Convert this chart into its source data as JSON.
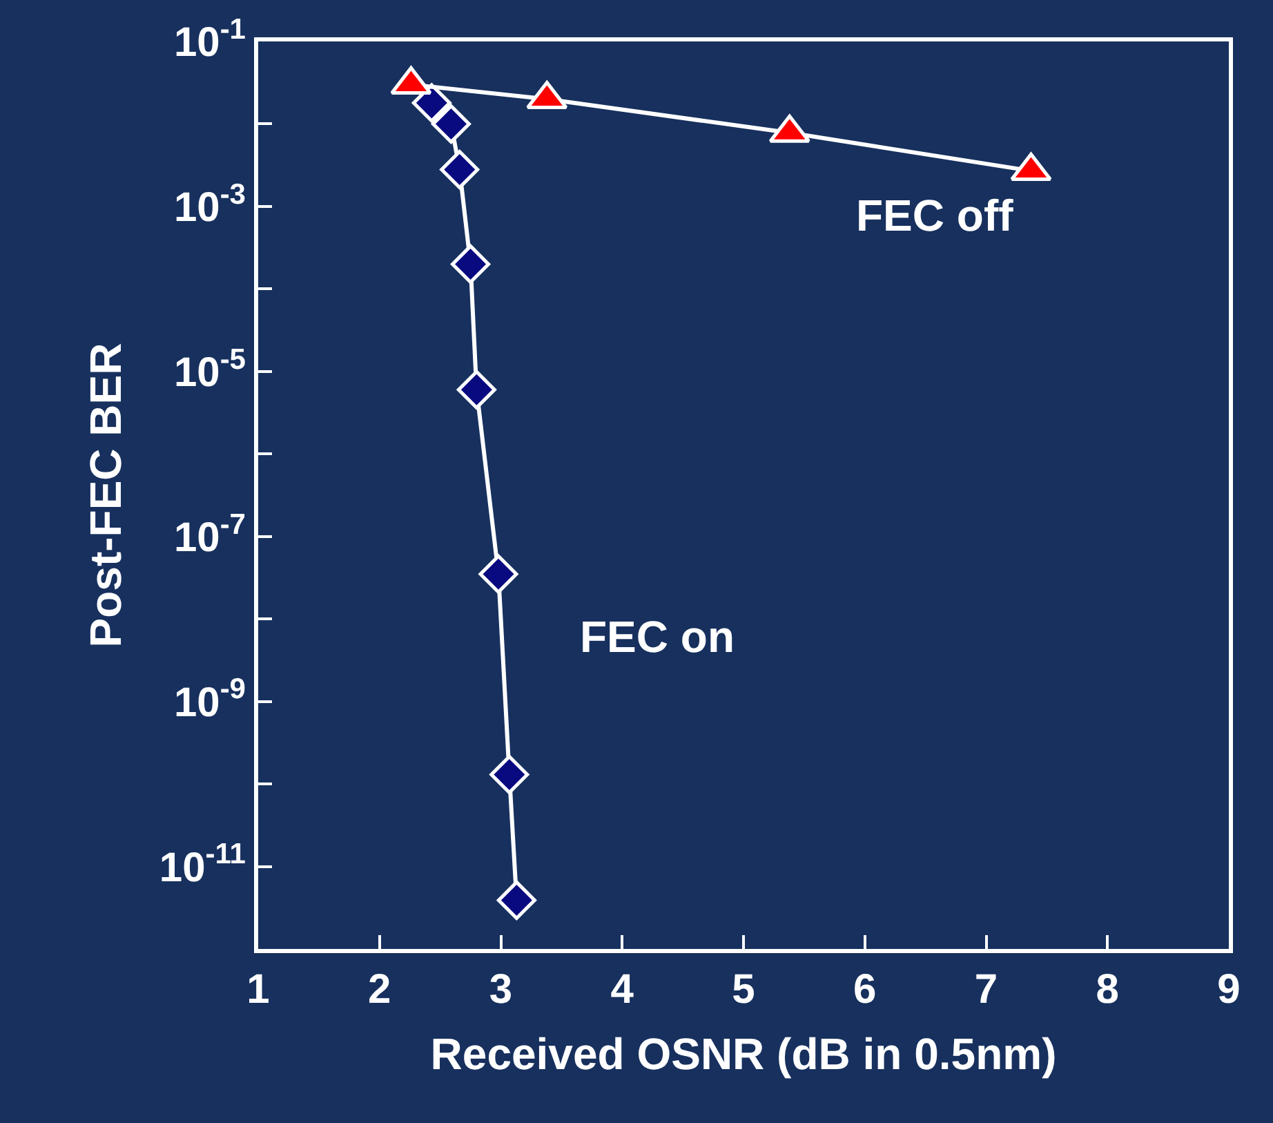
{
  "chart_data": {
    "type": "line",
    "xlabel": "Received OSNR (dB in 0.5nm)",
    "ylabel": "Post-FEC BER",
    "log": "y",
    "legend": false,
    "xlim": [
      1,
      9
    ],
    "xticks": [
      1,
      2,
      3,
      4,
      5,
      6,
      7,
      8,
      9
    ],
    "ylim": [
      1e-12,
      0.1
    ],
    "yticks": [
      {
        "value": 0.1,
        "label": "10$^{-1}$"
      },
      {
        "value": 0.01,
        "label": null
      },
      {
        "value": 0.001,
        "label": "10$^{-3}$"
      },
      {
        "value": 0.0001,
        "label": null
      },
      {
        "value": 1e-05,
        "label": "10$^{-5}$"
      },
      {
        "value": 1e-06,
        "label": null
      },
      {
        "value": 1e-07,
        "label": "10$^{-7}$"
      },
      {
        "value": 1e-08,
        "label": null
      },
      {
        "value": 1e-09,
        "label": "10$^{-9}$"
      },
      {
        "value": 1e-10,
        "label": null
      },
      {
        "value": 1e-11,
        "label": "10$^{-11}$"
      }
    ],
    "series": [
      {
        "name": "FEC on",
        "color": "#0a0a80",
        "marker": "diamond",
        "x": [
          2.43,
          2.59,
          2.66,
          2.75,
          2.8,
          2.98,
          3.07,
          3.13
        ],
        "values": [
          0.018,
          0.01,
          0.0028,
          0.0002,
          6e-06,
          3.5e-08,
          1.3e-10,
          3.9e-12
        ]
      },
      {
        "name": "FEC off",
        "color": "#ff0000",
        "marker": "triangle",
        "x": [
          2.26,
          3.38,
          5.38,
          7.37
        ],
        "values": [
          0.03,
          0.02,
          0.0078,
          0.0027
        ]
      }
    ]
  }
}
